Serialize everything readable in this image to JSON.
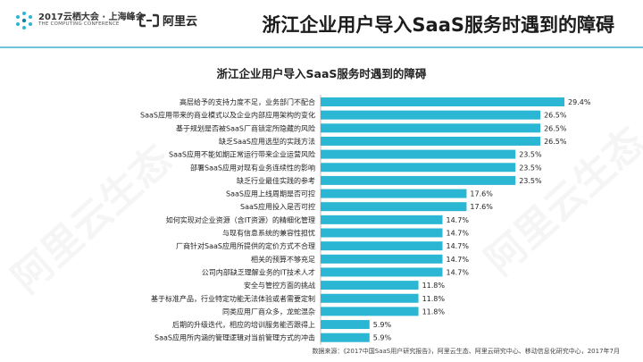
{
  "header": {
    "event_logo_line1": "2017云栖大会 · 上海峰会",
    "event_logo_line2": "THE COMPUTING CONFERENCE",
    "company_logo": "阿里云",
    "page_title": "浙江企业用户导入SaaS服务时遇到的障碍"
  },
  "watermark": "阿里云生态",
  "footer": {
    "source": "数据来源：《2017中国SaaS用户研究报告》，阿里云生态、阿里云研究中心、移动信息化研究中心，2017年7月"
  },
  "colors": {
    "bar": "#2bb7d4",
    "rule": "#6fc4dc"
  },
  "chart_data": {
    "type": "bar",
    "orientation": "horizontal",
    "title": "浙江企业用户导入SaaS服务时遇到的障碍",
    "xlabel": "",
    "ylabel": "",
    "xlim": [
      0,
      30
    ],
    "categories": [
      "高层给予的支持力度不足，业务部门不配合",
      "SaaS应用带来的商业模式以及企业内部应用架构的变化",
      "基于规划是否被SaaS厂商锁定所隐藏的风险",
      "缺乏SaaS应用选型的实践方法",
      "SaaS应用不能如期正常运行带来企业运营风险",
      "部署SaaS应用对现有业务连续性的影响",
      "缺乏行业最佳实践的参考",
      "SaaS应用上线周期是否可控",
      "SaaS应用投入是否可控",
      "如何实现对企业资源（含IT资源）的精细化管理",
      "与现有信息系统的兼容性担忧",
      "厂商针对SaaS应用所提供的定价方式不合理",
      "相关的预算不够充足",
      "公司内部缺乏理解业务的IT技术人才",
      "安全与管控方面的挑战",
      "基于标准产品，行业特定功能无法体验或者需要定制",
      "同类应用厂商众多，龙蛇混杂",
      "后期的升级迭代，相应的培训服务能否跟得上",
      "SaaS应用所内涵的管理逻辑对当前管理方式的冲击"
    ],
    "values": [
      29.4,
      26.5,
      26.5,
      26.5,
      23.5,
      23.5,
      23.5,
      17.6,
      17.6,
      14.7,
      14.7,
      14.7,
      14.7,
      14.7,
      11.8,
      11.8,
      11.8,
      5.9,
      5.9
    ],
    "value_labels": [
      "29.4%",
      "26.5%",
      "26.5%",
      "26.5%",
      "23.5%",
      "23.5%",
      "23.5%",
      "17.6%",
      "17.6%",
      "14.7%",
      "14.7%",
      "14.7%",
      "14.7%",
      "14.7%",
      "11.8%",
      "11.8%",
      "11.8%",
      "5.9%",
      "5.9%"
    ]
  }
}
